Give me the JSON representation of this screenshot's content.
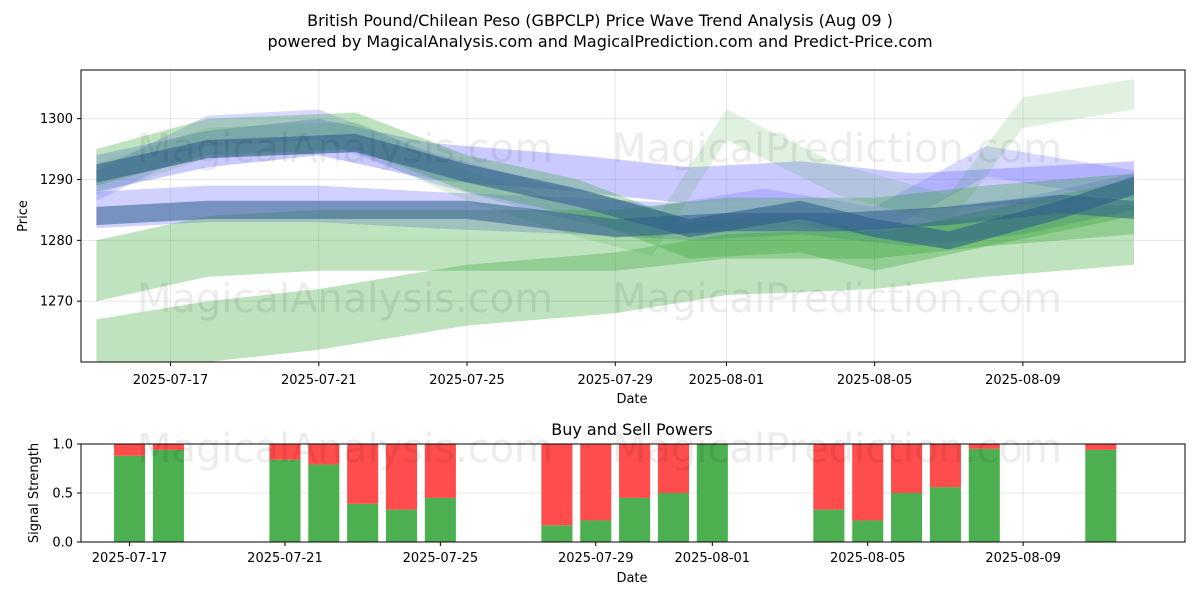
{
  "title_line1": "British Pound/Chilean Peso (GBPCLP) Price Wave Trend Analysis (Aug 09 )",
  "title_line2": "powered by MagicalAnalysis.com and MagicalPrediction.com and Predict-Price.com",
  "watermarks": [
    "MagicalAnalysis.com",
    "MagicalPrediction.com"
  ],
  "colors": {
    "buy": "#4caf50",
    "sell": "#ff4c4c",
    "blue_wave": "#6666ff",
    "green_wave": "#2ca02c",
    "dark_wave": "#2f5f8a"
  },
  "chart_data": [
    {
      "type": "area",
      "title": "",
      "xlabel": "Date",
      "ylabel": "Price",
      "x_ticks": [
        "2025-07-17",
        "2025-07-21",
        "2025-07-25",
        "2025-07-29",
        "2025-08-01",
        "2025-08-05",
        "2025-08-09"
      ],
      "y_ticks": [
        1270,
        1280,
        1290,
        1300
      ],
      "xlim": [
        "2025-07-14T14:00",
        "2025-08-13T09:00"
      ],
      "ylim": [
        1260,
        1308
      ],
      "grid": true,
      "series": [
        {
          "color": "#6666ff",
          "alpha": 0.35,
          "band_width": 6,
          "x": [
            "2025-07-15",
            "2025-07-18",
            "2025-07-21",
            "2025-07-24",
            "2025-07-28",
            "2025-07-31",
            "2025-08-03",
            "2025-08-06",
            "2025-08-09",
            "2025-08-12"
          ],
          "y": [
            1291,
            1295,
            1297,
            1293,
            1291,
            1289,
            1290,
            1288,
            1289,
            1290
          ]
        },
        {
          "color": "#6666ff",
          "alpha": 0.3,
          "band_width": 6,
          "x": [
            "2025-07-15",
            "2025-07-18",
            "2025-07-21",
            "2025-07-24",
            "2025-07-28",
            "2025-07-31",
            "2025-08-03",
            "2025-08-06",
            "2025-08-09",
            "2025-08-12"
          ],
          "y": [
            1285,
            1286,
            1286,
            1285,
            1284,
            1283,
            1284,
            1282,
            1284,
            1288
          ]
        },
        {
          "color": "#6666ff",
          "alpha": 0.25,
          "band_width": 5,
          "x": [
            "2025-07-15",
            "2025-07-18",
            "2025-07-21",
            "2025-07-24",
            "2025-07-27",
            "2025-07-30",
            "2025-08-02",
            "2025-08-05",
            "2025-08-08",
            "2025-08-12"
          ],
          "y": [
            1289,
            1298,
            1299,
            1292,
            1287,
            1283,
            1286,
            1283,
            1293,
            1289
          ]
        },
        {
          "color": "#2ca02c",
          "alpha": 0.3,
          "band_width": 6,
          "x": [
            "2025-07-15",
            "2025-07-18",
            "2025-07-22",
            "2025-07-25",
            "2025-07-28",
            "2025-07-31",
            "2025-08-03",
            "2025-08-05",
            "2025-08-08",
            "2025-08-12"
          ],
          "y": [
            1292,
            1297,
            1298,
            1291,
            1287,
            1280,
            1281,
            1278,
            1282,
            1287
          ]
        },
        {
          "color": "#2ca02c",
          "alpha": 0.15,
          "band_width": 5,
          "x": [
            "2025-07-15",
            "2025-07-18",
            "2025-07-22",
            "2025-07-25",
            "2025-07-28",
            "2025-07-30",
            "2025-08-01",
            "2025-08-04",
            "2025-08-07",
            "2025-08-09",
            "2025-08-12"
          ],
          "y": [
            1290,
            1296,
            1297,
            1289,
            1283,
            1280,
            1299,
            1290,
            1285,
            1301,
            1304
          ]
        },
        {
          "color": "#2ca02c",
          "alpha": 0.3,
          "band_width": 10,
          "x": [
            "2025-07-15",
            "2025-07-18",
            "2025-07-21",
            "2025-07-25",
            "2025-07-29",
            "2025-08-01",
            "2025-08-05",
            "2025-08-08",
            "2025-08-12"
          ],
          "y": [
            1275,
            1279,
            1280,
            1280,
            1280,
            1282,
            1282,
            1284,
            1286
          ]
        },
        {
          "color": "#2ca02c",
          "alpha": 0.3,
          "band_width": 10,
          "x": [
            "2025-07-15",
            "2025-07-18",
            "2025-07-21",
            "2025-07-25",
            "2025-07-29",
            "2025-08-01",
            "2025-08-05",
            "2025-08-08",
            "2025-08-12"
          ],
          "y": [
            1262,
            1265,
            1267,
            1271,
            1273,
            1276,
            1277,
            1279,
            1281
          ]
        },
        {
          "color": "#2f5f8a",
          "alpha": 0.6,
          "band_width": 3,
          "x": [
            "2025-07-15",
            "2025-07-18",
            "2025-07-22",
            "2025-07-25",
            "2025-07-28",
            "2025-07-31",
            "2025-08-03",
            "2025-08-05",
            "2025-08-07",
            "2025-08-10",
            "2025-08-12"
          ],
          "y": [
            1291,
            1295,
            1296,
            1291,
            1287,
            1282,
            1285,
            1282,
            1280,
            1285,
            1289
          ]
        },
        {
          "color": "#2f5f8a",
          "alpha": 0.55,
          "band_width": 3,
          "x": [
            "2025-07-15",
            "2025-07-18",
            "2025-07-21",
            "2025-07-25",
            "2025-07-29",
            "2025-08-01",
            "2025-08-04",
            "2025-08-07",
            "2025-08-10",
            "2025-08-12"
          ],
          "y": [
            1284,
            1285,
            1285,
            1285,
            1282,
            1283,
            1283,
            1284,
            1286,
            1285
          ]
        }
      ]
    },
    {
      "type": "bar",
      "title": "Buy and Sell Powers",
      "xlabel": "Date",
      "ylabel": "Signal Strength",
      "x_ticks": [
        "2025-07-17",
        "2025-07-21",
        "2025-07-25",
        "2025-07-29",
        "2025-08-01",
        "2025-08-05",
        "2025-08-09"
      ],
      "y_ticks": [
        0.0,
        0.5,
        1.0
      ],
      "ylim": [
        0,
        1
      ],
      "x": [
        "2025-07-17",
        "2025-07-18",
        "2025-07-21",
        "2025-07-22",
        "2025-07-23",
        "2025-07-24",
        "2025-07-25",
        "2025-07-28",
        "2025-07-29",
        "2025-07-30",
        "2025-07-31",
        "2025-08-01",
        "2025-08-04",
        "2025-08-05",
        "2025-08-06",
        "2025-08-07",
        "2025-08-08",
        "2025-08-11"
      ],
      "series": [
        {
          "name": "buy",
          "values": [
            0.88,
            0.94,
            0.84,
            0.79,
            0.39,
            0.33,
            0.45,
            0.17,
            0.22,
            0.45,
            0.5,
            1.0,
            0.33,
            0.22,
            0.5,
            0.56,
            0.95,
            0.94
          ]
        },
        {
          "name": "sell",
          "values": [
            0.12,
            0.06,
            0.16,
            0.21,
            0.61,
            0.67,
            0.55,
            0.83,
            0.78,
            0.55,
            0.5,
            0.0,
            0.67,
            0.78,
            0.5,
            0.44,
            0.05,
            0.06
          ]
        }
      ]
    }
  ]
}
